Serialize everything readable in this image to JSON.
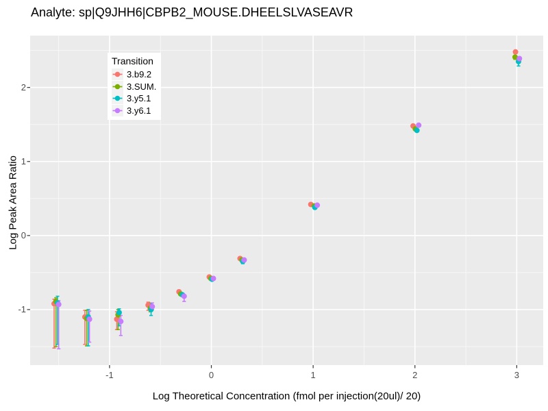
{
  "chart_data": {
    "type": "scatter",
    "title": "Analyte: sp|Q9JHH6|CBPB2_MOUSE.DHEELSLVASEAVR",
    "xlabel": "Log Theoretical Concentration (fmol per injection(20ul)/ 20)",
    "ylabel": "Log Peak Area Ratio",
    "xlim": [
      -1.78,
      3.26
    ],
    "ylim": [
      -1.75,
      2.7
    ],
    "x_major_ticks": [
      -1,
      0,
      1,
      2,
      3
    ],
    "x_minor_ticks": [
      -1.5,
      -0.5,
      0.5,
      1.5,
      2.5
    ],
    "y_major_ticks": [
      -1,
      0,
      1,
      2
    ],
    "y_minor_ticks": [
      -1.5,
      -0.5,
      0.5,
      1.5,
      2.5
    ],
    "grid": true,
    "legend": {
      "title": "Transition",
      "position": "inset-top-left"
    },
    "colors": {
      "panel_bg": "#EBEBEB",
      "grid_major": "#FFFFFF",
      "grid_minor": "#F7F7F7",
      "tick_mark": "#333333",
      "tick_label": "#4D4D4D",
      "legend_key_bg": "#F2F2F2"
    },
    "series": [
      {
        "name": "3.b9.2",
        "color": "#F8766D",
        "points": [
          {
            "x": -1.523,
            "dx": -3.2,
            "y": -0.92,
            "lo": -1.52,
            "hi": -0.86
          },
          {
            "x": -1.222,
            "dx": -3.0,
            "y": -1.1,
            "lo": -1.47,
            "hi": -1.01
          },
          {
            "x": -0.921,
            "dx": -1.2,
            "y": -1.13,
            "lo": -1.27,
            "hi": -1.03
          },
          {
            "x": -0.602,
            "dx": -2.8,
            "y": -0.94,
            "lo": -1.01,
            "hi": -0.9
          },
          {
            "x": -0.301,
            "dx": -2.5,
            "y": -0.76,
            "lo": -0.76,
            "hi": -0.76
          },
          {
            "x": 0.0,
            "dx": -3.0,
            "y": -0.56,
            "lo": -0.56,
            "hi": -0.56
          },
          {
            "x": 0.301,
            "dx": -2.8,
            "y": -0.31,
            "lo": -0.31,
            "hi": -0.31
          },
          {
            "x": 1.0,
            "dx": -3.4,
            "y": 0.42,
            "lo": 0.42,
            "hi": 0.42
          },
          {
            "x": 2.0,
            "dx": -2.7,
            "y": 1.48,
            "lo": 1.48,
            "hi": 1.48
          },
          {
            "x": 3.0,
            "dx": -1.8,
            "y": 2.48,
            "lo": 2.48,
            "hi": 2.48
          }
        ]
      },
      {
        "name": "3.SUM.",
        "color": "#7CAE00",
        "points": [
          {
            "x": -1.523,
            "dx": -0.5,
            "y": -0.89,
            "lo": -1.5,
            "hi": -0.84
          },
          {
            "x": -1.222,
            "dx": -0.3,
            "y": -1.12,
            "lo": -1.49,
            "hi": -1.01
          },
          {
            "x": -0.921,
            "dx": 0.7,
            "y": -1.07,
            "lo": -1.27,
            "hi": -1.0
          },
          {
            "x": -0.602,
            "dx": 0.5,
            "y": -0.98,
            "lo": -1.03,
            "hi": -0.91
          },
          {
            "x": -0.301,
            "dx": 0.1,
            "y": -0.79,
            "lo": -0.79,
            "hi": -0.79
          },
          {
            "x": 0.0,
            "dx": -0.7,
            "y": -0.58,
            "lo": -0.58,
            "hi": -0.58
          },
          {
            "x": 0.301,
            "dx": -0.1,
            "y": -0.33,
            "lo": -0.33,
            "hi": -0.33
          },
          {
            "x": 1.0,
            "dx": 1.6,
            "y": 0.4,
            "lo": 0.4,
            "hi": 0.4
          },
          {
            "x": 2.0,
            "dx": 0.6,
            "y": 1.44,
            "lo": 1.44,
            "hi": 1.44
          },
          {
            "x": 3.0,
            "dx": -2.4,
            "y": 2.41,
            "lo": 2.38,
            "hi": 2.43
          }
        ]
      },
      {
        "name": "3.y5.1",
        "color": "#00BFC4",
        "points": [
          {
            "x": -1.523,
            "dx": 1.8,
            "y": -0.91,
            "lo": -1.47,
            "hi": -0.82
          },
          {
            "x": -1.222,
            "dx": 2.0,
            "y": -1.1,
            "lo": -1.49,
            "hi": -1.0
          },
          {
            "x": -0.921,
            "dx": 2.3,
            "y": -1.04,
            "lo": -1.22,
            "hi": -0.99
          },
          {
            "x": -0.602,
            "dx": 1.5,
            "y": -1.0,
            "lo": -1.08,
            "hi": -0.92
          },
          {
            "x": -0.301,
            "dx": 2.5,
            "y": -0.8,
            "lo": -0.8,
            "hi": -0.8
          },
          {
            "x": 0.0,
            "dx": 1.0,
            "y": -0.59,
            "lo": -0.59,
            "hi": -0.59
          },
          {
            "x": 0.301,
            "dx": 1.2,
            "y": -0.35,
            "lo": -0.38,
            "hi": -0.33
          },
          {
            "x": 1.0,
            "dx": 2.6,
            "y": 0.38,
            "lo": 0.38,
            "hi": 0.38
          },
          {
            "x": 2.0,
            "dx": 2.9,
            "y": 1.42,
            "lo": 1.42,
            "hi": 1.42
          },
          {
            "x": 3.0,
            "dx": 2.6,
            "y": 2.35,
            "lo": 2.29,
            "hi": 2.37
          }
        ]
      },
      {
        "name": "3.y6.1",
        "color": "#C77CFF",
        "points": [
          {
            "x": -1.523,
            "dx": 3.5,
            "y": -0.93,
            "lo": -1.53,
            "hi": -0.88
          },
          {
            "x": -1.222,
            "dx": 3.7,
            "y": -1.13,
            "lo": -1.44,
            "hi": -1.02
          },
          {
            "x": -0.921,
            "dx": 4.7,
            "y": -1.16,
            "lo": -1.35,
            "hi": -1.08
          },
          {
            "x": -0.602,
            "dx": 3.2,
            "y": -0.96,
            "lo": -1.0,
            "hi": -0.91
          },
          {
            "x": -0.301,
            "dx": 5.0,
            "y": -0.82,
            "lo": -0.89,
            "hi": -0.8
          },
          {
            "x": 0.0,
            "dx": 3.0,
            "y": -0.58,
            "lo": -0.58,
            "hi": -0.58
          },
          {
            "x": 0.301,
            "dx": 3.2,
            "y": -0.33,
            "lo": -0.33,
            "hi": -0.33
          },
          {
            "x": 1.0,
            "dx": 6.0,
            "y": 0.41,
            "lo": 0.41,
            "hi": 0.41
          },
          {
            "x": 2.0,
            "dx": 5.5,
            "y": 1.49,
            "lo": 1.49,
            "hi": 1.49
          },
          {
            "x": 3.0,
            "dx": 3.9,
            "y": 2.39,
            "lo": 2.36,
            "hi": 2.41
          }
        ]
      }
    ]
  }
}
